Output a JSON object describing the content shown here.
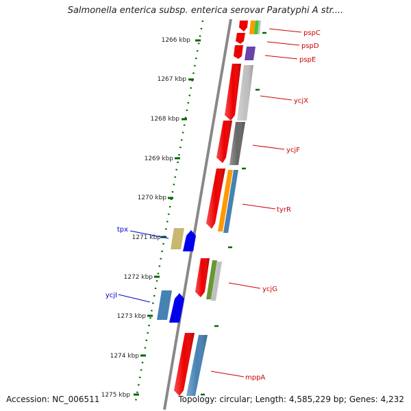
{
  "title": "Salmonella enterica subsp. enterica serovar Paratyphi A str....",
  "footer": {
    "accession": "Accession: NC_006511",
    "topology": "Topology: circular; Length: 4,585,229 bp; Genes: 4,232"
  },
  "ruler": {
    "ticks": [
      "1266 kbp",
      "1267 kbp",
      "1268 kbp",
      "1269 kbp",
      "1270 kbp",
      "1271 kbp",
      "1272 kbp",
      "1273 kbp",
      "1274 kbp",
      "1275 kbp"
    ]
  },
  "colors": {
    "red": "#ee0000",
    "orange": "#ff9900",
    "green": "#33cc33",
    "lime": "#66cc00",
    "purple": "#6644aa",
    "lightgray": "#c0c0c0",
    "darkgray": "#666666",
    "steelblue": "#4682b4",
    "olive": "#669933",
    "khaki": "#c8b870",
    "blue": "#0000ee",
    "ruler": "#006600",
    "backbone": "#888888"
  },
  "genes_right": [
    {
      "label": "pspC"
    },
    {
      "label": "pspD"
    },
    {
      "label": "pspE"
    },
    {
      "label": "ycjX"
    },
    {
      "label": "ycjF"
    },
    {
      "label": "tyrR"
    },
    {
      "label": "ycjG"
    },
    {
      "label": "mppA"
    }
  ],
  "genes_left": [
    {
      "label": "tpx"
    },
    {
      "label": "ycjI"
    }
  ]
}
